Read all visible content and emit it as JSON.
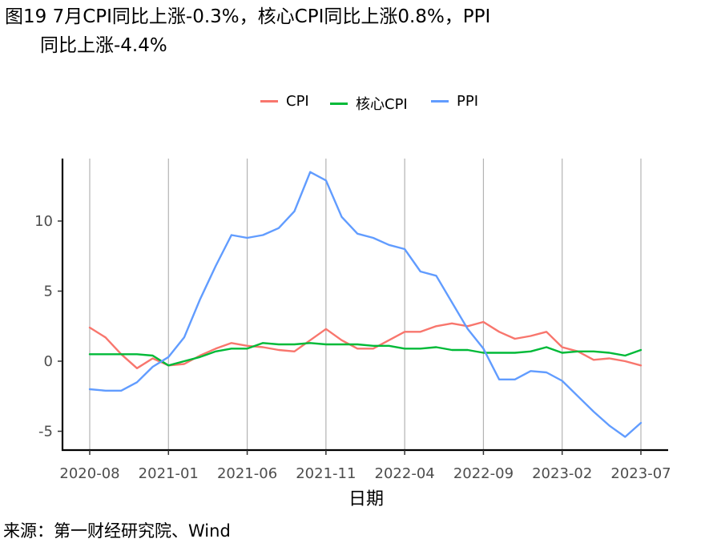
{
  "title": {
    "line1": "图19 7月CPI同比上涨-0.3%，核心CPI同比上涨0.8%，PPI",
    "line2": "同比上涨-4.4%"
  },
  "source": "来源：第一财经研究院、Wind",
  "chart_data": {
    "type": "line",
    "title": "图19 7月CPI同比上涨-0.3%，核心CPI同比上涨0.8%，PPI同比上涨-4.4%",
    "xlabel": "日期",
    "ylabel": "",
    "x": [
      "2020-08",
      "2020-09",
      "2020-10",
      "2020-11",
      "2020-12",
      "2021-01",
      "2021-02",
      "2021-03",
      "2021-04",
      "2021-05",
      "2021-06",
      "2021-07",
      "2021-08",
      "2021-09",
      "2021-10",
      "2021-11",
      "2021-12",
      "2022-01",
      "2022-02",
      "2022-03",
      "2022-04",
      "2022-05",
      "2022-06",
      "2022-07",
      "2022-08",
      "2022-09",
      "2022-10",
      "2022-11",
      "2022-12",
      "2023-01",
      "2023-02",
      "2023-03",
      "2023-04",
      "2023-05",
      "2023-06",
      "2023-07"
    ],
    "x_ticks": [
      "2020-08",
      "2021-01",
      "2021-06",
      "2021-11",
      "2022-04",
      "2022-09",
      "2023-02",
      "2023-07"
    ],
    "y_ticks": [
      10,
      5,
      0,
      -5
    ],
    "ylim": [
      -6.2,
      14.4
    ],
    "grid": "vertical at x ticks",
    "legend_position": "top",
    "series": [
      {
        "name": "CPI",
        "color": "#F8766D",
        "values": [
          2.4,
          1.7,
          0.5,
          -0.5,
          0.2,
          -0.3,
          -0.2,
          0.4,
          0.9,
          1.3,
          1.1,
          1.0,
          0.8,
          0.7,
          1.5,
          2.3,
          1.5,
          0.9,
          0.9,
          1.5,
          2.1,
          2.1,
          2.5,
          2.7,
          2.5,
          2.8,
          2.1,
          1.6,
          1.8,
          2.1,
          1.0,
          0.7,
          0.1,
          0.2,
          0.0,
          -0.3
        ]
      },
      {
        "name": "核心CPI",
        "color": "#00BA38",
        "values": [
          0.5,
          0.5,
          0.5,
          0.5,
          0.4,
          -0.3,
          0.0,
          0.3,
          0.7,
          0.9,
          0.9,
          1.3,
          1.2,
          1.2,
          1.3,
          1.2,
          1.2,
          1.2,
          1.1,
          1.1,
          0.9,
          0.9,
          1.0,
          0.8,
          0.8,
          0.6,
          0.6,
          0.6,
          0.7,
          1.0,
          0.6,
          0.7,
          0.7,
          0.6,
          0.4,
          0.8
        ]
      },
      {
        "name": "PPI",
        "color": "#619CFF",
        "values": [
          -2.0,
          -2.1,
          -2.1,
          -1.5,
          -0.4,
          0.3,
          1.7,
          4.4,
          6.8,
          9.0,
          8.8,
          9.0,
          9.5,
          10.7,
          13.5,
          12.9,
          10.3,
          9.1,
          8.8,
          8.3,
          8.0,
          6.4,
          6.1,
          4.2,
          2.3,
          0.9,
          -1.3,
          -1.3,
          -0.7,
          -0.8,
          -1.4,
          -2.5,
          -3.6,
          -4.6,
          -5.4,
          -4.4
        ]
      }
    ]
  }
}
